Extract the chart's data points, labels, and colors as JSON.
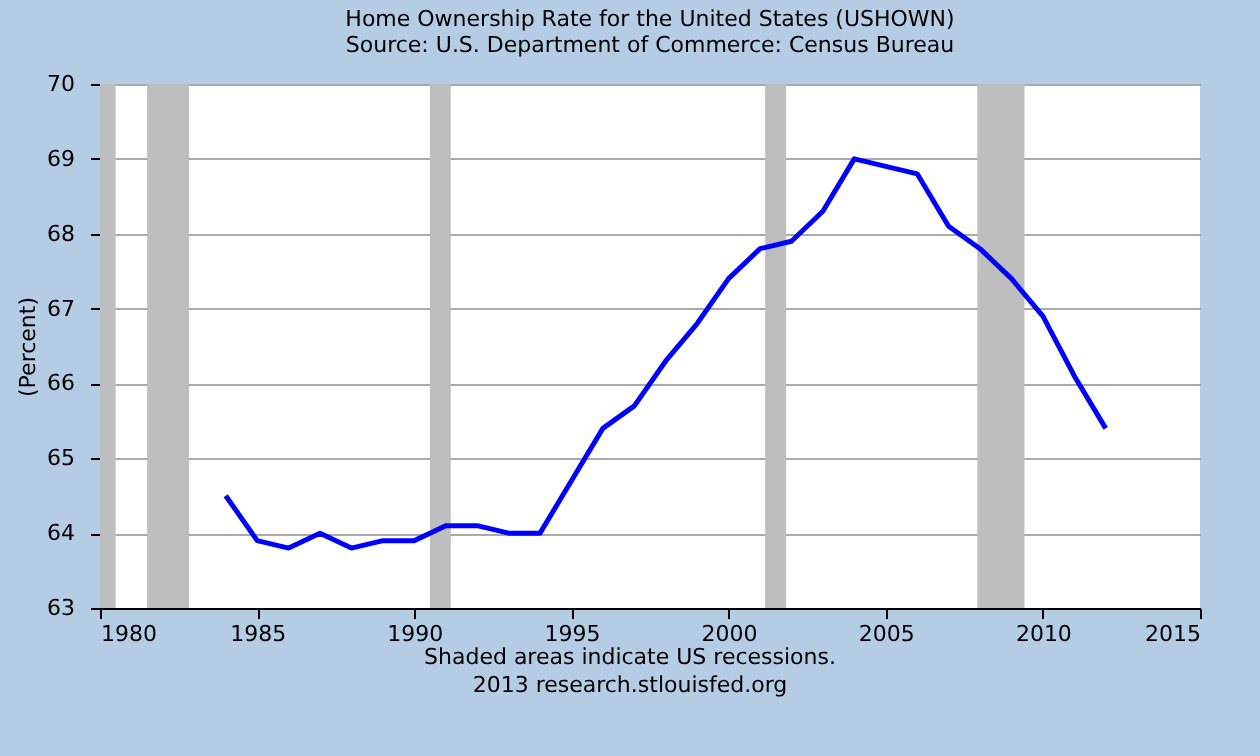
{
  "chart_data": {
    "type": "line",
    "title": "Home Ownership Rate for the United States (USHOWN)",
    "subtitle": "Source: U.S. Department of Commerce: Census Bureau",
    "ylabel": "(Percent)",
    "annotations": [
      "Shaded areas indicate US recessions.",
      "2013 research.stlouisfed.org"
    ],
    "x": [
      "1984",
      "1985",
      "1986",
      "1987",
      "1988",
      "1989",
      "1990",
      "1991",
      "1992",
      "1993",
      "1994",
      "1995",
      "1996",
      "1997",
      "1998",
      "1999",
      "2000",
      "2001",
      "2002",
      "2003",
      "2004",
      "2005",
      "2006",
      "2007",
      "2008",
      "2009",
      "2010",
      "2011",
      "2012"
    ],
    "series": [
      {
        "color": "#0000ff",
        "values": [
          64.5,
          63.9,
          63.8,
          64.0,
          63.8,
          63.9,
          63.9,
          64.1,
          64.1,
          64.0,
          64.0,
          64.7,
          65.4,
          65.7,
          66.3,
          66.8,
          67.4,
          67.8,
          67.9,
          68.3,
          69.0,
          68.9,
          68.8,
          68.1,
          67.8,
          67.4,
          66.9,
          66.1,
          65.4
        ]
      }
    ],
    "xlim": [
      "1980",
      "2015"
    ],
    "xticks": [
      "1980",
      "1985",
      "1990",
      "1995",
      "2000",
      "2005",
      "2010",
      "2015"
    ],
    "ylim": [
      63,
      70
    ],
    "yticks": [
      63,
      64,
      65,
      66,
      67,
      68,
      69,
      70
    ],
    "grid": "y",
    "line_style": "solid",
    "bands": [
      {
        "axis": "x",
        "from": "1980-01",
        "to": "1980-07",
        "color": "#bebebe"
      },
      {
        "axis": "x",
        "from": "1981-07",
        "to": "1982-11",
        "color": "#bebebe"
      },
      {
        "axis": "x",
        "from": "1990-07",
        "to": "1991-03",
        "color": "#bebebe"
      },
      {
        "axis": "x",
        "from": "2001-03",
        "to": "2001-11",
        "color": "#bebebe"
      },
      {
        "axis": "x",
        "from": "2007-12",
        "to": "2009-06",
        "color": "#bebebe"
      }
    ]
  }
}
